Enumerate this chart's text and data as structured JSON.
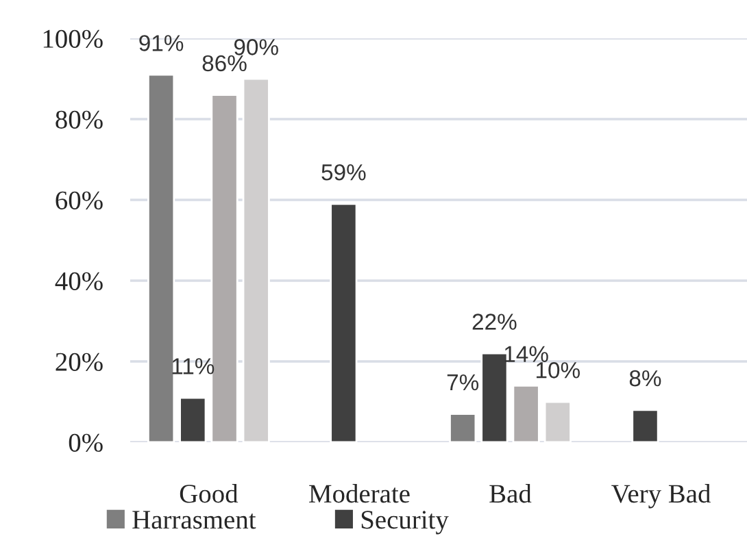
{
  "chart_data": {
    "type": "bar",
    "categories": [
      "Good",
      "Moderate",
      "Bad",
      "Very Bad"
    ],
    "series": [
      {
        "name": "Harrasment",
        "color": "#7f7f7f",
        "values": [
          91,
          null,
          7,
          null
        ],
        "value_labels": [
          "91%",
          null,
          "7%",
          null
        ]
      },
      {
        "name": "Security",
        "color": "#404040",
        "values": [
          11,
          59,
          22,
          8
        ],
        "value_labels": [
          "11%",
          "59%",
          "22%",
          "8%"
        ]
      },
      {
        "color": "#aeaaaa",
        "values": [
          86,
          null,
          14,
          null
        ],
        "value_labels": [
          "86%",
          null,
          "14%",
          null
        ]
      },
      {
        "color": "#d0cece",
        "values": [
          90,
          null,
          10,
          null
        ],
        "value_labels": [
          "90%",
          null,
          "10%",
          null
        ]
      }
    ],
    "ylim": [
      0,
      100
    ],
    "yticks": [
      {
        "value": 0,
        "label": "0%"
      },
      {
        "value": 20,
        "label": "20%"
      },
      {
        "value": 40,
        "label": "40%"
      },
      {
        "value": 60,
        "label": "60%"
      },
      {
        "value": 80,
        "label": "80%"
      },
      {
        "value": 100,
        "label": "100%"
      }
    ],
    "grid": "y",
    "legend": "bottom"
  }
}
